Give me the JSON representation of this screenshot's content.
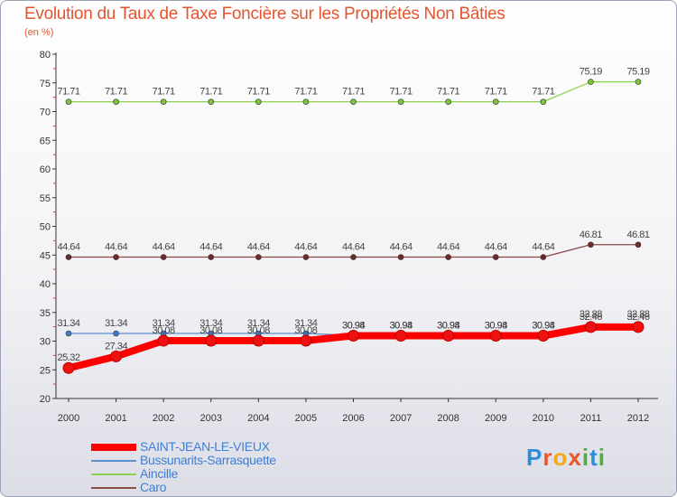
{
  "title": "Evolution du Taux de Taxe Foncière sur les Propriétés Non Bâties",
  "unit_label": "(en %)",
  "logo_text": "Proxiti",
  "chart_data": {
    "type": "line",
    "title": "Evolution du Taux de Taxe Foncière sur les Propriétés Non Bâties",
    "ylabel": "(en %)",
    "xlabel": "",
    "ylim": [
      20,
      80
    ],
    "yticks": [
      20,
      25,
      30,
      35,
      40,
      45,
      50,
      55,
      60,
      65,
      70,
      75,
      80
    ],
    "grid": false,
    "legend_position": "bottom-left",
    "categories": [
      "2000",
      "2001",
      "2002",
      "2003",
      "2004",
      "2005",
      "2006",
      "2007",
      "2008",
      "2009",
      "2010",
      "2011",
      "2012"
    ],
    "series": [
      {
        "name": "Aincille",
        "color": "#8fd14f",
        "point_color": "#7cc53a",
        "values": [
          71.71,
          71.71,
          71.71,
          71.71,
          71.71,
          71.71,
          71.71,
          71.71,
          71.71,
          71.71,
          71.71,
          75.19,
          75.19
        ],
        "labels": [
          "71.71",
          "71.71",
          "71.71",
          "71.71",
          "71.71",
          "71.71",
          "71.71",
          "71.71",
          "71.71",
          "71.71",
          "71.71",
          "75.19",
          "75.19"
        ]
      },
      {
        "name": "Caro",
        "color": "#8b4a4a",
        "point_color": "#6e2a2a",
        "values": [
          44.64,
          44.64,
          44.64,
          44.64,
          44.64,
          44.64,
          44.64,
          44.64,
          44.64,
          44.64,
          44.64,
          46.81,
          46.81
        ],
        "labels": [
          "44.64",
          "44.64",
          "44.64",
          "44.64",
          "44.64",
          "44.64",
          "44.64",
          "44.64",
          "44.64",
          "44.64",
          "44.64",
          "46.81",
          "46.81"
        ]
      },
      {
        "name": "Bussunarits-Sarrasquette",
        "color": "#5b8fd0",
        "point_color": "#3f78c8",
        "values": [
          31.34,
          31.34,
          31.34,
          31.34,
          31.34,
          31.34,
          30.98,
          30.98,
          30.98,
          30.98,
          30.98,
          32.88,
          32.88
        ],
        "labels": [
          "31.34",
          "31.34",
          "31.34",
          "31.34",
          "31.34",
          "31.34",
          "30.98",
          "30.98",
          "30.98",
          "30.98",
          "30.98",
          "32.88",
          "32.88"
        ]
      },
      {
        "name": "SAINT-JEAN-LE-VIEUX",
        "color": "#ff0000",
        "point_color": "#ee1111",
        "values": [
          25.32,
          27.34,
          30.08,
          30.08,
          30.08,
          30.08,
          30.94,
          30.94,
          30.94,
          30.94,
          30.94,
          32.46,
          32.46
        ],
        "labels": [
          "25.32",
          "27.34",
          "30.08",
          "30.08",
          "30.08",
          "30.08",
          "30.94",
          "30.94",
          "30.94",
          "30.94",
          "30.94",
          "32.46",
          "32.46"
        ]
      }
    ],
    "legend": [
      "SAINT-JEAN-LE-VIEUX",
      "Bussunarits-Sarrasquette",
      "Aincille",
      "Caro"
    ]
  }
}
